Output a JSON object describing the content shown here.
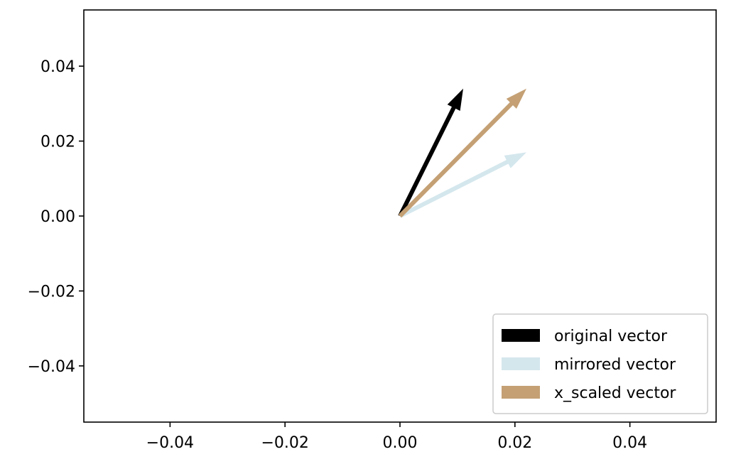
{
  "chart_data": {
    "type": "quiver",
    "title": "",
    "xlabel": "",
    "ylabel": "",
    "xlim": [
      -0.055,
      0.055
    ],
    "ylim": [
      -0.055,
      0.055
    ],
    "xticks": [
      -0.04,
      -0.02,
      0.0,
      0.02,
      0.04
    ],
    "yticks": [
      -0.04,
      -0.02,
      0.0,
      0.02,
      0.04
    ],
    "xtick_labels": [
      "−0.04",
      "−0.02",
      "0.00",
      "0.02",
      "0.04"
    ],
    "ytick_labels": [
      "−0.04",
      "−0.02",
      "0.00",
      "0.02",
      "0.04"
    ],
    "grid": false,
    "legend_position": "lower-right",
    "series": [
      {
        "name": "original vector",
        "color": "#000000",
        "origin": [
          0,
          0
        ],
        "vector": [
          0.011,
          0.034
        ]
      },
      {
        "name": "mirrored vector",
        "color": "#d4e7ed",
        "origin": [
          0,
          0
        ],
        "vector": [
          0.022,
          0.017
        ]
      },
      {
        "name": "x_scaled vector",
        "color": "#c4a074",
        "origin": [
          0,
          0
        ],
        "vector": [
          0.022,
          0.034
        ]
      }
    ]
  }
}
